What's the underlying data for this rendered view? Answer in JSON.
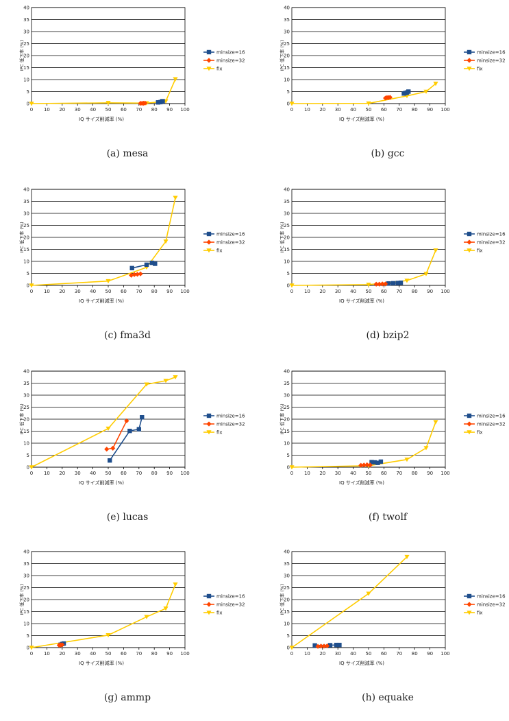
{
  "chart_data": [
    {
      "type": "line",
      "caption": "(a) mesa",
      "xlabel": "IQ サイズ削減率 (%)",
      "ylabel": "IPC 低下率 (%)",
      "xlim": [
        0,
        100
      ],
      "ylim": [
        0,
        40
      ],
      "xticks": [
        "0",
        "10",
        "20",
        "30",
        "40",
        "50",
        "60",
        "70",
        "80",
        "90",
        "100"
      ],
      "yticks": [
        "0",
        "5",
        "10",
        "15",
        "20",
        "25",
        "30",
        "35",
        "40"
      ],
      "grid": "horizontal",
      "legend": "right",
      "series": [
        {
          "name": "minsize=16",
          "color": "#1f4e8c",
          "marker": "square",
          "points": [
            [
              82.5,
              0.5
            ],
            [
              84,
              0.6
            ],
            [
              85,
              0.9
            ],
            [
              85.5,
              1.0
            ]
          ]
        },
        {
          "name": "minsize=32",
          "color": "#ff4500",
          "marker": "diamond",
          "points": [
            [
              71,
              0.1
            ],
            [
              72,
              0.1
            ],
            [
              73,
              0.15
            ],
            [
              74,
              0.2
            ]
          ]
        },
        {
          "name": "fix",
          "color": "#ffcc00",
          "marker": "triangle-down",
          "points": [
            [
              0,
              0
            ],
            [
              50,
              0.3
            ],
            [
              75,
              0.2
            ],
            [
              87.5,
              1.0
            ],
            [
              93.75,
              10.2
            ]
          ]
        }
      ]
    },
    {
      "type": "line",
      "caption": "(b) gcc",
      "xlabel": "IQ サイズ削減率 (%)",
      "ylabel": "IPC 低下率 (%)",
      "xlim": [
        0,
        100
      ],
      "ylim": [
        0,
        40
      ],
      "xticks": [
        "0",
        "10",
        "20",
        "30",
        "40",
        "50",
        "60",
        "70",
        "80",
        "90",
        "100"
      ],
      "yticks": [
        "0",
        "5",
        "10",
        "15",
        "20",
        "25",
        "30",
        "35",
        "40"
      ],
      "grid": "horizontal",
      "legend": "right",
      "series": [
        {
          "name": "minsize=16",
          "color": "#1f4e8c",
          "marker": "square",
          "points": [
            [
              73,
              4.2
            ],
            [
              74,
              4.4
            ],
            [
              75,
              4.6
            ],
            [
              76,
              5.0
            ]
          ]
        },
        {
          "name": "minsize=32",
          "color": "#ff4500",
          "marker": "diamond",
          "points": [
            [
              61,
              2.3
            ],
            [
              62,
              2.5
            ],
            [
              63,
              2.5
            ],
            [
              64,
              2.6
            ]
          ]
        },
        {
          "name": "fix",
          "color": "#ffcc00",
          "marker": "triangle-down",
          "points": [
            [
              0,
              0
            ],
            [
              50,
              0.1
            ],
            [
              75,
              3.2
            ],
            [
              87.5,
              5.0
            ],
            [
              93.75,
              8.3
            ]
          ]
        }
      ]
    },
    {
      "type": "line",
      "caption": "(c) fma3d",
      "xlabel": "IQ サイズ削減率 (%)",
      "ylabel": "IPC 低下率 (%)",
      "xlim": [
        0,
        100
      ],
      "ylim": [
        0,
        40
      ],
      "xticks": [
        "0",
        "10",
        "20",
        "30",
        "40",
        "50",
        "60",
        "70",
        "80",
        "90",
        "100"
      ],
      "yticks": [
        "0",
        "5",
        "10",
        "15",
        "20",
        "25",
        "30",
        "35",
        "40"
      ],
      "grid": "horizontal",
      "legend": "right",
      "series": [
        {
          "name": "minsize=16",
          "color": "#1f4e8c",
          "marker": "square",
          "points": [
            [
              65.5,
              7.2
            ],
            [
              75,
              8.6
            ],
            [
              78.5,
              9.4
            ],
            [
              80.5,
              9.0
            ]
          ]
        },
        {
          "name": "minsize=32",
          "color": "#ff4500",
          "marker": "diamond",
          "points": [
            [
              65,
              4.2
            ],
            [
              67,
              4.5
            ],
            [
              69,
              4.6
            ],
            [
              71,
              4.8
            ]
          ]
        },
        {
          "name": "fix",
          "color": "#ffcc00",
          "marker": "triangle-down",
          "points": [
            [
              0,
              0
            ],
            [
              50,
              1.8
            ],
            [
              75,
              7.5
            ],
            [
              87.5,
              18.3
            ],
            [
              93.75,
              36.5
            ]
          ]
        }
      ]
    },
    {
      "type": "line",
      "caption": "(d) bzip2",
      "xlabel": "IQ サイズ削減率 (%)",
      "ylabel": "IPC 低下率 (%)",
      "xlim": [
        0,
        100
      ],
      "ylim": [
        0,
        40
      ],
      "xticks": [
        "0",
        "10",
        "20",
        "30",
        "40",
        "50",
        "60",
        "70",
        "80",
        "90",
        "100"
      ],
      "yticks": [
        "0",
        "5",
        "10",
        "15",
        "20",
        "25",
        "30",
        "35",
        "40"
      ],
      "grid": "horizontal",
      "legend": "right",
      "series": [
        {
          "name": "minsize=16",
          "color": "#1f4e8c",
          "marker": "square",
          "points": [
            [
              63,
              0.8
            ],
            [
              66,
              0.9
            ],
            [
              69,
              1.0
            ],
            [
              71,
              1.1
            ]
          ]
        },
        {
          "name": "minsize=32",
          "color": "#ff4500",
          "marker": "diamond",
          "points": [
            [
              55,
              0.5
            ],
            [
              57,
              0.5
            ],
            [
              59,
              0.6
            ],
            [
              61,
              0.6
            ]
          ]
        },
        {
          "name": "fix",
          "color": "#ffcc00",
          "marker": "triangle-down",
          "points": [
            [
              0,
              0
            ],
            [
              50,
              0.3
            ],
            [
              75,
              2.0
            ],
            [
              87.5,
              4.8
            ],
            [
              93.75,
              14.6
            ]
          ]
        }
      ]
    },
    {
      "type": "line",
      "caption": "(e) lucas",
      "xlabel": "IQ サイズ削減率 (%)",
      "ylabel": "IPC 低下率 (%)",
      "xlim": [
        0,
        100
      ],
      "ylim": [
        0,
        40
      ],
      "xticks": [
        "0",
        "10",
        "20",
        "30",
        "40",
        "50",
        "60",
        "70",
        "80",
        "90",
        "100"
      ],
      "yticks": [
        "0",
        "5",
        "10",
        "15",
        "20",
        "25",
        "30",
        "35",
        "40"
      ],
      "grid": "horizontal",
      "legend": "right",
      "series": [
        {
          "name": "minsize=16",
          "color": "#1f4e8c",
          "marker": "square",
          "points": [
            [
              51,
              2.8
            ],
            [
              64,
              15.1
            ],
            [
              70,
              15.8
            ],
            [
              72,
              20.8
            ]
          ]
        },
        {
          "name": "minsize=32",
          "color": "#ff4500",
          "marker": "diamond",
          "points": [
            [
              49,
              7.5
            ],
            [
              53,
              7.9
            ],
            [
              62,
              19.3
            ]
          ]
        },
        {
          "name": "fix",
          "color": "#ffcc00",
          "marker": "triangle-down",
          "points": [
            [
              0,
              0
            ],
            [
              50,
              16.1
            ],
            [
              75,
              34.5
            ],
            [
              87.5,
              36.0
            ],
            [
              93.75,
              37.5
            ]
          ]
        }
      ]
    },
    {
      "type": "line",
      "caption": "(f) twolf",
      "xlabel": "IQ サイズ削減率 (%)",
      "ylabel": "IPC 低下率 (%)",
      "xlim": [
        0,
        100
      ],
      "ylim": [
        0,
        40
      ],
      "xticks": [
        "0",
        "10",
        "20",
        "30",
        "40",
        "50",
        "60",
        "70",
        "80",
        "90",
        "100"
      ],
      "yticks": [
        "0",
        "5",
        "10",
        "15",
        "20",
        "25",
        "30",
        "35",
        "40"
      ],
      "grid": "horizontal",
      "legend": "right",
      "series": [
        {
          "name": "minsize=16",
          "color": "#1f4e8c",
          "marker": "square",
          "points": [
            [
              52,
              2.1
            ],
            [
              54,
              2.0
            ],
            [
              56,
              1.8
            ],
            [
              58,
              2.3
            ]
          ]
        },
        {
          "name": "minsize=32",
          "color": "#ff4500",
          "marker": "diamond",
          "points": [
            [
              45,
              0.8
            ],
            [
              47,
              0.9
            ],
            [
              49,
              1.0
            ],
            [
              51,
              0.9
            ]
          ]
        },
        {
          "name": "fix",
          "color": "#ffcc00",
          "marker": "triangle-down",
          "points": [
            [
              0,
              0
            ],
            [
              50,
              0.6
            ],
            [
              75,
              3.2
            ],
            [
              87.5,
              8.0
            ],
            [
              93.75,
              18.8
            ]
          ]
        }
      ]
    },
    {
      "type": "line",
      "caption": "(g) ammp",
      "xlabel": "IQ サイズ削減率 (%)",
      "ylabel": "IPC 低下率 (%)",
      "xlim": [
        0,
        100
      ],
      "ylim": [
        0,
        40
      ],
      "xticks": [
        "0",
        "10",
        "20",
        "30",
        "40",
        "50",
        "60",
        "70",
        "80",
        "90",
        "100"
      ],
      "yticks": [
        "0",
        "5",
        "10",
        "15",
        "20",
        "25",
        "30",
        "35",
        "40"
      ],
      "grid": "horizontal",
      "legend": "right",
      "series": [
        {
          "name": "minsize=16",
          "color": "#1f4e8c",
          "marker": "square",
          "points": [
            [
              19,
              1.2
            ],
            [
              20,
              1.5
            ],
            [
              21,
              1.7
            ]
          ]
        },
        {
          "name": "minsize=32",
          "color": "#ff4500",
          "marker": "diamond",
          "points": [
            [
              18,
              1.0
            ],
            [
              19,
              1.1
            ],
            [
              20,
              1.2
            ]
          ]
        },
        {
          "name": "fix",
          "color": "#ffcc00",
          "marker": "triangle-down",
          "points": [
            [
              0,
              0
            ],
            [
              50,
              5.2
            ],
            [
              75,
              12.8
            ],
            [
              87.5,
              16.3
            ],
            [
              93.75,
              26.3
            ]
          ]
        }
      ]
    },
    {
      "type": "line",
      "caption": "(h) equake",
      "xlabel": "IQ サイズ削減率 (%)",
      "ylabel": "IPC 低下率 (%)",
      "xlim": [
        0,
        100
      ],
      "ylim": [
        0,
        40
      ],
      "xticks": [
        "0",
        "10",
        "20",
        "30",
        "40",
        "50",
        "60",
        "70",
        "80",
        "90",
        "100"
      ],
      "yticks": [
        "0",
        "5",
        "10",
        "15",
        "20",
        "25",
        "30",
        "35",
        "40"
      ],
      "grid": "horizontal",
      "legend": "right",
      "series": [
        {
          "name": "minsize=16",
          "color": "#1f4e8c",
          "marker": "square",
          "points": [
            [
              15,
              0.9
            ],
            [
              25,
              1.0
            ],
            [
              29,
              1.1
            ],
            [
              31,
              1.1
            ]
          ]
        },
        {
          "name": "minsize=32",
          "color": "#ff4500",
          "marker": "diamond",
          "points": [
            [
              17,
              0.5
            ],
            [
              19,
              0.6
            ],
            [
              21,
              0.6
            ],
            [
              23,
              0.7
            ]
          ]
        },
        {
          "name": "fix",
          "color": "#ffcc00",
          "marker": "triangle-down",
          "points": [
            [
              0,
              0
            ],
            [
              50,
              22.5
            ],
            [
              75,
              37.8
            ]
          ]
        }
      ]
    }
  ]
}
